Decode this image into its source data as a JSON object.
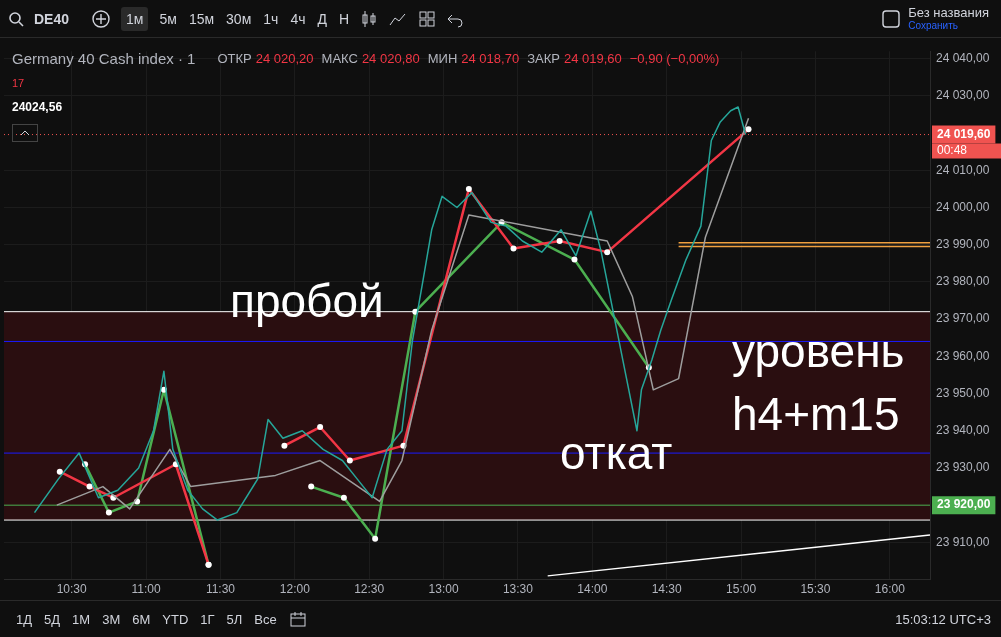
{
  "chart_data": {
    "type": "line",
    "title": "Germany 40 Cash index · 1",
    "annotations": [
      "DE40",
      "1м",
      "5м",
      "15м",
      "30м",
      "1ч",
      "4ч",
      "Д",
      "Н",
      "Без названия",
      "Сохранить",
      "ОТКР",
      "24 020,20",
      "МАКС",
      "24 020,80",
      "МИН",
      "24 018,70",
      "ЗАКР",
      "24 019,60",
      "−0,90 (−0,00%)",
      "17",
      "24024,56",
      "00:48",
      "1Д",
      "5Д",
      "1М",
      "3М",
      "6М",
      "YTD",
      "1Г",
      "5Л",
      "Все",
      "15:03:12 UTC+3",
      "пробой",
      "откат",
      "уровень",
      "h4+m15"
    ],
    "xlim": [
      10.045,
      16.27
    ],
    "xticks": [
      {
        "value": 10.5,
        "label": "10:30"
      },
      {
        "value": 11,
        "label": "11:00"
      },
      {
        "value": 11.5,
        "label": "11:30"
      },
      {
        "value": 12,
        "label": "12:00"
      },
      {
        "value": 12.5,
        "label": "12:30"
      },
      {
        "value": 13,
        "label": "13:00"
      },
      {
        "value": 13.5,
        "label": "13:30"
      },
      {
        "value": 14,
        "label": "14:00"
      },
      {
        "value": 14.5,
        "label": "14:30"
      },
      {
        "value": 15,
        "label": "15:00"
      },
      {
        "value": 15.5,
        "label": "15:30"
      },
      {
        "value": 16,
        "label": "16:00"
      }
    ],
    "ylim": [
      23900,
      24042
    ],
    "yticks": [
      {
        "value": 23910,
        "label": "23 910,00"
      },
      {
        "value": 23930,
        "label": "23 930,00"
      },
      {
        "value": 23940,
        "label": "23 940,00"
      },
      {
        "value": 23950,
        "label": "23 950,00"
      },
      {
        "value": 23960,
        "label": "23 960,00"
      },
      {
        "value": 23970,
        "label": "23 970,00"
      },
      {
        "value": 23980,
        "label": "23 980,00"
      },
      {
        "value": 23990,
        "label": "23 990,00"
      },
      {
        "value": 24000,
        "label": "24 000,00"
      },
      {
        "value": 24010,
        "label": "24 010,00"
      },
      {
        "value": 24030,
        "label": "24 030,00"
      },
      {
        "value": 24040,
        "label": "24 040,00"
      }
    ],
    "grid": true,
    "legend": false,
    "marker": "none",
    "line_style": "solid",
    "bands": [
      {
        "axis": "y",
        "from": 23916,
        "to": 23972,
        "color": "#2a0e10"
      }
    ],
    "ref_lines": [
      {
        "axis": "y",
        "value": 23972,
        "color": "#ffffff"
      },
      {
        "axis": "y",
        "value": 23964,
        "color": "#1a1aff"
      },
      {
        "axis": "y",
        "value": 23934,
        "color": "#1a1aff"
      },
      {
        "axis": "y",
        "value": 23920,
        "color": "#4caf50",
        "label": "23 920,00"
      },
      {
        "axis": "y",
        "value": 23916,
        "color": "#ffffff"
      },
      {
        "axis": "y",
        "value": 24019.6,
        "color": "#f05350",
        "line_style": "dotted",
        "label": "24 019,60"
      }
    ],
    "series": [
      {
        "color": "#26a69a",
        "x": [
          10.25,
          10.41,
          10.55,
          10.68,
          10.81,
          10.95,
          11.05,
          11.12,
          11.18,
          11.28,
          11.38,
          11.48,
          11.61,
          11.75,
          11.82,
          11.92,
          12.05,
          12.19,
          12.32,
          12.42,
          12.52,
          12.62,
          12.72,
          12.79,
          12.86,
          12.92,
          12.99,
          13.09,
          13.19,
          13.32,
          13.42,
          13.53,
          13.66,
          13.79,
          13.89,
          13.99,
          14.06,
          14.14,
          14.23,
          14.3,
          14.33,
          14.4,
          14.46,
          14.53,
          14.63,
          14.73,
          14.8,
          14.86,
          14.93,
          14.98,
          15.03
        ],
        "values": [
          23918,
          23927,
          23934,
          23922,
          23924,
          23930,
          23940,
          23956,
          23935,
          23924,
          23919,
          23916,
          23918,
          23927,
          23943,
          23938,
          23940,
          23935,
          23932,
          23927,
          23922,
          23935,
          23940,
          23964,
          23980,
          23994,
          24003,
          24000,
          24004,
          23996,
          23995,
          23991,
          23988,
          23994,
          23987,
          23999,
          23988,
          23972,
          23954,
          23940,
          23951,
          23959,
          23967,
          23975,
          23986,
          23995,
          24018,
          24023,
          24026,
          24027,
          24019.6
        ]
      },
      {
        "color": "#9e9e9e",
        "x": [
          10.4,
          10.71,
          10.89,
          11.16,
          11.3,
          11.87,
          12.17,
          12.57,
          12.72,
          12.92,
          13.17,
          14.1,
          14.27,
          14.41,
          14.58,
          14.76,
          15.05
        ],
        "values": [
          23920,
          23925,
          23919,
          23935,
          23925,
          23928,
          23932,
          23921,
          23932,
          23967,
          23998,
          23991,
          23976,
          23951,
          23954,
          23992,
          24024
        ]
      },
      {
        "color": "#f23645",
        "marker": "circle",
        "x": [
          10.42,
          10.62,
          10.78,
          11.2,
          11.42,
          11.45,
          11.62,
          11.93,
          12.17,
          12.37,
          12.73,
          13.17,
          13.47,
          13.78,
          14.1,
          15.05
        ],
        "values": [
          23929,
          23925,
          23922,
          23931,
          23904,
          null,
          null,
          23936,
          23941,
          23932,
          23936,
          24005,
          23989,
          23991,
          23988,
          24021
        ]
      },
      {
        "color": "#4caf50",
        "marker": "circle",
        "x": [
          10.59,
          10.75,
          10.94,
          11.12,
          11.42,
          11.47,
          11.77,
          12.11,
          12.33,
          12.54,
          12.81,
          13.39,
          13.88,
          14.38
        ],
        "values": [
          23931,
          23918,
          23921,
          23951,
          23904,
          null,
          null,
          23925,
          23922,
          23911,
          23972,
          23996,
          23986,
          23957
        ]
      },
      {
        "color": "#f0a040",
        "x": [
          14.58,
          16.27
        ],
        "values": [
          23990.5,
          23990.5
        ]
      },
      {
        "color": "#f0a040",
        "x": [
          14.58,
          16.27
        ],
        "values": [
          23989.5,
          23989.5
        ]
      },
      {
        "color": "#ffffff",
        "x": [
          13.7,
          16.27
        ],
        "values": [
          23901,
          23912
        ]
      }
    ]
  }
}
